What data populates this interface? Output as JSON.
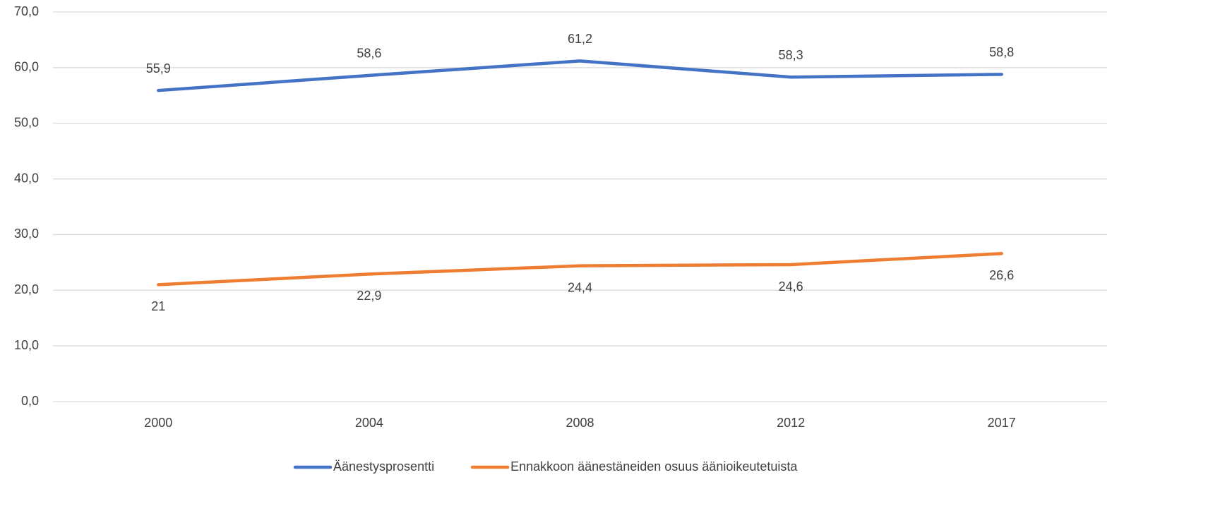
{
  "chart_data": {
    "type": "line",
    "categories": [
      "2000",
      "2004",
      "2008",
      "2012",
      "2017"
    ],
    "series": [
      {
        "name": "Äänestysprosentti",
        "color": "#4472c4",
        "values": [
          55.9,
          58.6,
          61.2,
          58.3,
          58.8
        ],
        "value_labels": [
          "55,9",
          "58,6",
          "61,2",
          "58,3",
          "58,8"
        ]
      },
      {
        "name": "Ennakkoon äänestäneiden osuus äänioikeutetuista",
        "color": "#ed7d31",
        "values": [
          21,
          22.9,
          24.4,
          24.6,
          26.6
        ],
        "value_labels": [
          "21",
          "22,9",
          "24,4",
          "24,6",
          "26,6"
        ]
      }
    ],
    "ylim": [
      0,
      70
    ],
    "yticks": [
      {
        "value": 0,
        "label": "0,0"
      },
      {
        "value": 10,
        "label": "10,0"
      },
      {
        "value": 20,
        "label": "20,0"
      },
      {
        "value": 30,
        "label": "30,0"
      },
      {
        "value": 40,
        "label": "40,0"
      },
      {
        "value": 50,
        "label": "50,0"
      },
      {
        "value": 60,
        "label": "60,0"
      },
      {
        "value": 70,
        "label": "70,0"
      }
    ],
    "grid": true,
    "legend": "bottom"
  }
}
